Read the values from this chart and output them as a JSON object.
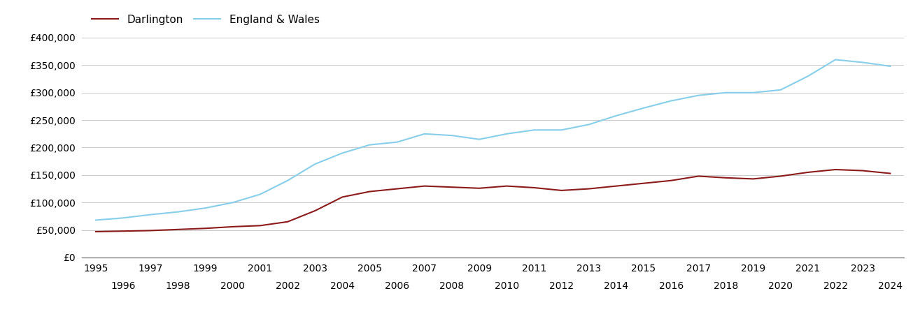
{
  "darlington_years": [
    1995,
    1996,
    1997,
    1998,
    1999,
    2000,
    2001,
    2002,
    2003,
    2004,
    2005,
    2006,
    2007,
    2008,
    2009,
    2010,
    2011,
    2012,
    2013,
    2014,
    2015,
    2016,
    2017,
    2018,
    2019,
    2020,
    2021,
    2022,
    2023,
    2024
  ],
  "darlington_values": [
    47000,
    48000,
    49000,
    51000,
    53000,
    56000,
    58000,
    65000,
    85000,
    110000,
    120000,
    125000,
    130000,
    128000,
    126000,
    130000,
    127000,
    122000,
    125000,
    130000,
    135000,
    140000,
    148000,
    145000,
    143000,
    148000,
    155000,
    160000,
    158000,
    153000
  ],
  "england_years": [
    1995,
    1996,
    1997,
    1998,
    1999,
    2000,
    2001,
    2002,
    2003,
    2004,
    2005,
    2006,
    2007,
    2008,
    2009,
    2010,
    2011,
    2012,
    2013,
    2014,
    2015,
    2016,
    2017,
    2018,
    2019,
    2020,
    2021,
    2022,
    2023,
    2024
  ],
  "england_values": [
    68000,
    72000,
    78000,
    83000,
    90000,
    100000,
    115000,
    140000,
    170000,
    190000,
    205000,
    210000,
    225000,
    222000,
    215000,
    225000,
    232000,
    232000,
    242000,
    258000,
    272000,
    285000,
    295000,
    300000,
    300000,
    305000,
    330000,
    360000,
    355000,
    348000
  ],
  "darlington_color": "#8b1a1a",
  "england_color": "#87ceeb",
  "darlington_label": "Darlington",
  "england_label": "England & Wales",
  "ylim": [
    0,
    400000
  ],
  "yticks": [
    0,
    50000,
    100000,
    150000,
    200000,
    250000,
    300000,
    350000,
    400000
  ],
  "xlim_min": 1994.5,
  "xlim_max": 2024.5,
  "background_color": "#ffffff",
  "grid_color": "#cccccc",
  "line_width": 1.5,
  "legend_fontsize": 11,
  "tick_fontsize": 10
}
